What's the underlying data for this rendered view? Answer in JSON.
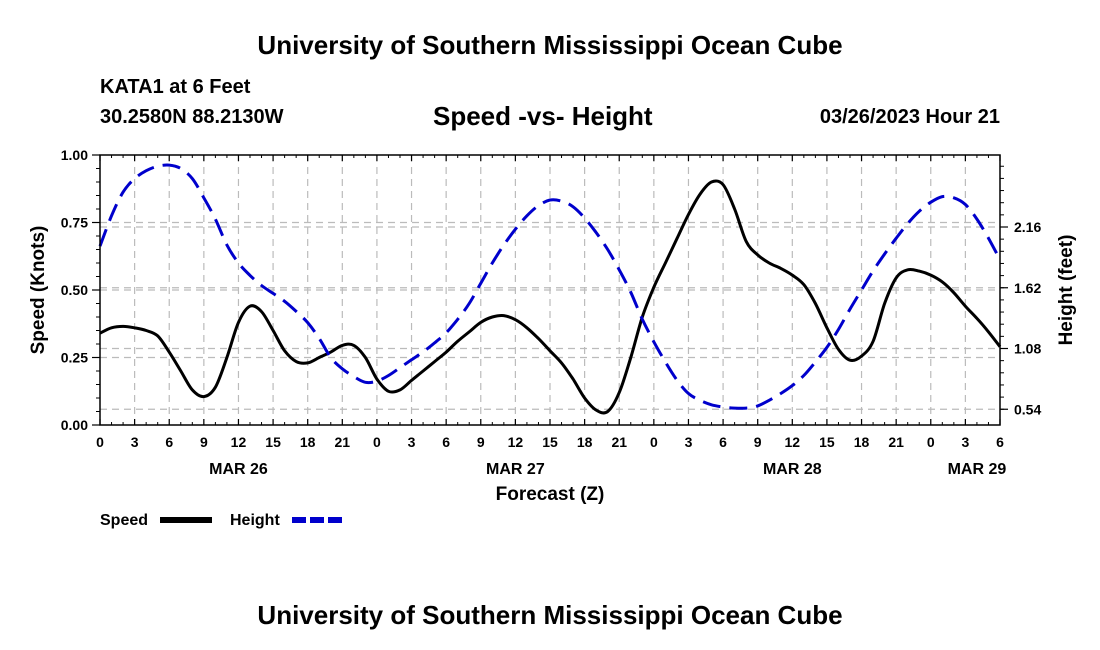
{
  "header": {
    "title": "University of Southern Mississippi Ocean Cube",
    "station": "KATA1 at 6 Feet",
    "coordinates": "30.2580N  88.2130W",
    "chart_title": "Speed -vs- Height",
    "datetime": "03/26/2023 Hour 21"
  },
  "footer": {
    "title": "University of Southern Mississippi Ocean Cube"
  },
  "colors": {
    "speed": "#000000",
    "height": "#0000cc",
    "grid": "#bbbbbb"
  },
  "chart_data": {
    "type": "line",
    "title": "Speed -vs- Height",
    "xlabel": "Forecast (Z)",
    "ylabel": "Speed (Knots)",
    "y2label": "Height (feet)",
    "x_range_hours": [
      0,
      78
    ],
    "x_ticks": [
      {
        "hour": 0,
        "label": "0"
      },
      {
        "hour": 3,
        "label": "3"
      },
      {
        "hour": 6,
        "label": "6"
      },
      {
        "hour": 9,
        "label": "9"
      },
      {
        "hour": 12,
        "label": "12"
      },
      {
        "hour": 15,
        "label": "15"
      },
      {
        "hour": 18,
        "label": "18"
      },
      {
        "hour": 21,
        "label": "21"
      },
      {
        "hour": 24,
        "label": "0"
      },
      {
        "hour": 27,
        "label": "3"
      },
      {
        "hour": 30,
        "label": "6"
      },
      {
        "hour": 33,
        "label": "9"
      },
      {
        "hour": 36,
        "label": "12"
      },
      {
        "hour": 39,
        "label": "15"
      },
      {
        "hour": 42,
        "label": "18"
      },
      {
        "hour": 45,
        "label": "21"
      },
      {
        "hour": 48,
        "label": "0"
      },
      {
        "hour": 51,
        "label": "3"
      },
      {
        "hour": 54,
        "label": "6"
      },
      {
        "hour": 57,
        "label": "9"
      },
      {
        "hour": 60,
        "label": "12"
      },
      {
        "hour": 63,
        "label": "15"
      },
      {
        "hour": 66,
        "label": "18"
      },
      {
        "hour": 69,
        "label": "21"
      },
      {
        "hour": 72,
        "label": "0"
      },
      {
        "hour": 75,
        "label": "3"
      },
      {
        "hour": 78,
        "label": "6"
      }
    ],
    "date_labels": [
      {
        "hour": 12,
        "label": "MAR 26"
      },
      {
        "hour": 36,
        "label": "MAR 27"
      },
      {
        "hour": 60,
        "label": "MAR 28"
      },
      {
        "hour": 76,
        "label": "MAR 29"
      }
    ],
    "y_range": [
      0,
      1
    ],
    "y_ticks": [
      {
        "value": 0,
        "label": "0.00"
      },
      {
        "value": 0.25,
        "label": "0.25"
      },
      {
        "value": 0.5,
        "label": "0.50"
      },
      {
        "value": 0.75,
        "label": "0.75"
      },
      {
        "value": 1,
        "label": "1.00"
      }
    ],
    "y2_range": [
      0.4,
      2.8
    ],
    "y2_ticks": [
      {
        "value": 0.54,
        "label": "0.54"
      },
      {
        "value": 1.08,
        "label": "1.08"
      },
      {
        "value": 1.62,
        "label": "1.62"
      },
      {
        "value": 2.16,
        "label": "2.16"
      }
    ],
    "legend": [
      {
        "name": "Speed",
        "style": "solid"
      },
      {
        "name": "Height",
        "style": "dashed"
      }
    ],
    "series": [
      {
        "name": "Speed",
        "axis": "left",
        "points": [
          [
            0,
            0.34
          ],
          [
            1,
            0.36
          ],
          [
            2,
            0.365
          ],
          [
            3,
            0.36
          ],
          [
            4,
            0.35
          ],
          [
            5,
            0.33
          ],
          [
            6,
            0.27
          ],
          [
            7,
            0.2
          ],
          [
            8,
            0.13
          ],
          [
            9,
            0.105
          ],
          [
            10,
            0.14
          ],
          [
            11,
            0.25
          ],
          [
            12,
            0.38
          ],
          [
            13,
            0.44
          ],
          [
            14,
            0.42
          ],
          [
            15,
            0.35
          ],
          [
            16,
            0.275
          ],
          [
            17,
            0.235
          ],
          [
            18,
            0.23
          ],
          [
            19,
            0.25
          ],
          [
            20,
            0.27
          ],
          [
            21,
            0.295
          ],
          [
            22,
            0.295
          ],
          [
            23,
            0.25
          ],
          [
            24,
            0.17
          ],
          [
            25,
            0.125
          ],
          [
            26,
            0.13
          ],
          [
            27,
            0.165
          ],
          [
            28,
            0.2
          ],
          [
            29,
            0.235
          ],
          [
            30,
            0.27
          ],
          [
            31,
            0.31
          ],
          [
            32,
            0.345
          ],
          [
            33,
            0.38
          ],
          [
            34,
            0.4
          ],
          [
            35,
            0.405
          ],
          [
            36,
            0.39
          ],
          [
            37,
            0.36
          ],
          [
            38,
            0.32
          ],
          [
            39,
            0.275
          ],
          [
            40,
            0.23
          ],
          [
            41,
            0.17
          ],
          [
            42,
            0.1
          ],
          [
            43,
            0.055
          ],
          [
            44,
            0.05
          ],
          [
            45,
            0.12
          ],
          [
            46,
            0.25
          ],
          [
            47,
            0.4
          ],
          [
            48,
            0.51
          ],
          [
            49,
            0.6
          ],
          [
            50,
            0.69
          ],
          [
            51,
            0.78
          ],
          [
            52,
            0.855
          ],
          [
            53,
            0.9
          ],
          [
            54,
            0.89
          ],
          [
            55,
            0.8
          ],
          [
            56,
            0.68
          ],
          [
            57,
            0.63
          ],
          [
            58,
            0.6
          ],
          [
            59,
            0.58
          ],
          [
            60,
            0.555
          ],
          [
            61,
            0.52
          ],
          [
            62,
            0.45
          ],
          [
            63,
            0.36
          ],
          [
            64,
            0.28
          ],
          [
            65,
            0.24
          ],
          [
            66,
            0.255
          ],
          [
            67,
            0.31
          ],
          [
            68,
            0.45
          ],
          [
            69,
            0.545
          ],
          [
            70,
            0.575
          ],
          [
            71,
            0.57
          ],
          [
            72,
            0.555
          ],
          [
            73,
            0.53
          ],
          [
            74,
            0.49
          ],
          [
            75,
            0.44
          ],
          [
            76,
            0.395
          ],
          [
            77,
            0.345
          ],
          [
            78,
            0.29
          ]
        ]
      },
      {
        "name": "Height",
        "axis": "right",
        "points": [
          [
            0,
            1.99
          ],
          [
            1,
            2.26
          ],
          [
            2,
            2.47
          ],
          [
            3,
            2.59
          ],
          [
            4,
            2.66
          ],
          [
            5,
            2.7
          ],
          [
            6,
            2.71
          ],
          [
            7,
            2.68
          ],
          [
            8,
            2.59
          ],
          [
            9,
            2.42
          ],
          [
            10,
            2.23
          ],
          [
            11,
            2.0
          ],
          [
            12,
            1.84
          ],
          [
            13,
            1.73
          ],
          [
            14,
            1.64
          ],
          [
            15,
            1.57
          ],
          [
            16,
            1.5
          ],
          [
            17,
            1.41
          ],
          [
            18,
            1.31
          ],
          [
            19,
            1.17
          ],
          [
            20,
            1.0
          ],
          [
            21,
            0.9
          ],
          [
            22,
            0.83
          ],
          [
            23,
            0.78
          ],
          [
            24,
            0.79
          ],
          [
            25,
            0.84
          ],
          [
            26,
            0.91
          ],
          [
            27,
            0.98
          ],
          [
            28,
            1.05
          ],
          [
            29,
            1.13
          ],
          [
            30,
            1.22
          ],
          [
            31,
            1.34
          ],
          [
            32,
            1.48
          ],
          [
            33,
            1.66
          ],
          [
            34,
            1.84
          ],
          [
            35,
            2.0
          ],
          [
            36,
            2.14
          ],
          [
            37,
            2.26
          ],
          [
            38,
            2.35
          ],
          [
            39,
            2.4
          ],
          [
            40,
            2.39
          ],
          [
            41,
            2.34
          ],
          [
            42,
            2.24
          ],
          [
            43,
            2.11
          ],
          [
            44,
            1.96
          ],
          [
            45,
            1.78
          ],
          [
            46,
            1.58
          ],
          [
            47,
            1.34
          ],
          [
            48,
            1.14
          ],
          [
            49,
            0.96
          ],
          [
            50,
            0.8
          ],
          [
            51,
            0.68
          ],
          [
            52,
            0.62
          ],
          [
            53,
            0.58
          ],
          [
            54,
            0.56
          ],
          [
            55,
            0.55
          ],
          [
            56,
            0.55
          ],
          [
            57,
            0.57
          ],
          [
            58,
            0.62
          ],
          [
            59,
            0.68
          ],
          [
            60,
            0.75
          ],
          [
            61,
            0.84
          ],
          [
            62,
            0.96
          ],
          [
            63,
            1.09
          ],
          [
            64,
            1.25
          ],
          [
            65,
            1.43
          ],
          [
            66,
            1.6
          ],
          [
            67,
            1.77
          ],
          [
            68,
            1.92
          ],
          [
            69,
            2.06
          ],
          [
            70,
            2.19
          ],
          [
            71,
            2.3
          ],
          [
            72,
            2.38
          ],
          [
            73,
            2.43
          ],
          [
            74,
            2.42
          ],
          [
            75,
            2.36
          ],
          [
            76,
            2.23
          ],
          [
            77,
            2.06
          ],
          [
            78,
            1.87
          ]
        ]
      }
    ]
  }
}
